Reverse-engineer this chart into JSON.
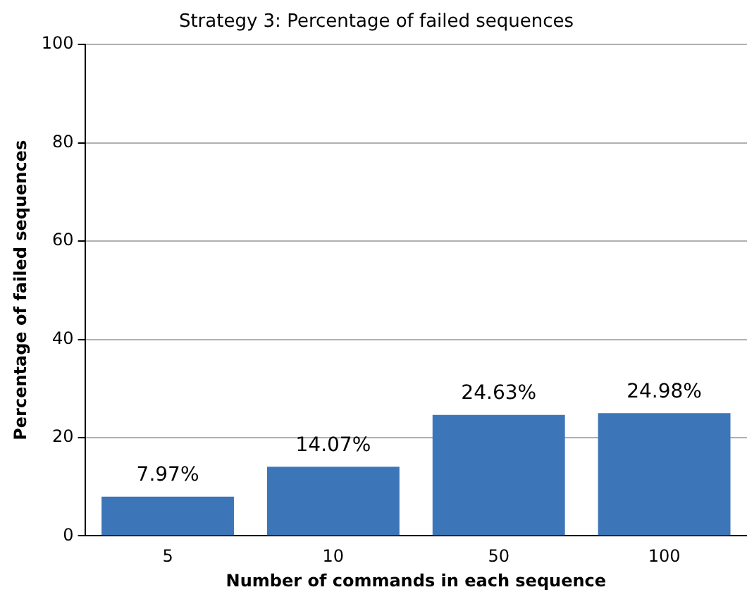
{
  "chart_data": {
    "type": "bar",
    "title": "Strategy 3: Percentage of failed sequences",
    "xlabel": "Number of commands in each sequence",
    "ylabel": "Percentage of failed sequences",
    "categories": [
      "5",
      "10",
      "50",
      "100"
    ],
    "values": [
      7.97,
      14.07,
      24.63,
      24.98
    ],
    "value_labels": [
      "7.97%",
      "14.07%",
      "24.63%",
      "24.98%"
    ],
    "color": "#3d75b9",
    "ylim": [
      0,
      100
    ],
    "yticks": [
      0,
      20,
      40,
      60,
      80,
      100
    ],
    "grid": "y",
    "legend": false
  }
}
